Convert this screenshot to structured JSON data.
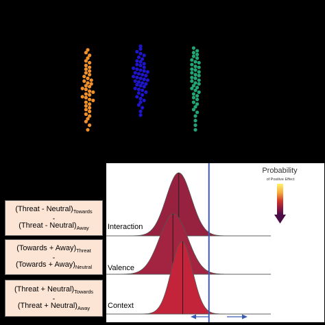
{
  "chart_data": [
    {
      "type": "scatter",
      "title": "",
      "colors": [
        "#f0902a",
        "#1e14c8",
        "#22a574"
      ],
      "series": [
        {
          "color": "#f0902a",
          "values": [
            0.92,
            0.89,
            0.86,
            0.83,
            0.8,
            0.78,
            0.75,
            0.73,
            0.71,
            0.69,
            0.67,
            0.65,
            0.63,
            0.61,
            0.59,
            0.58,
            0.56,
            0.55,
            0.53,
            0.52,
            0.5,
            0.49,
            0.47,
            0.46,
            0.44,
            0.43,
            0.41,
            0.4,
            0.38,
            0.37,
            0.35,
            0.33,
            0.31,
            0.29,
            0.27,
            0.25,
            0.22,
            0.2,
            0.17,
            0.14,
            0.1,
            0.05
          ]
        },
        {
          "color": "#1e14c8",
          "values": [
            0.96,
            0.93,
            0.9,
            0.88,
            0.86,
            0.84,
            0.82,
            0.8,
            0.79,
            0.77,
            0.76,
            0.75,
            0.73,
            0.72,
            0.71,
            0.7,
            0.69,
            0.68,
            0.67,
            0.66,
            0.65,
            0.64,
            0.63,
            0.62,
            0.61,
            0.6,
            0.59,
            0.58,
            0.57,
            0.56,
            0.55,
            0.54,
            0.53,
            0.52,
            0.5,
            0.49,
            0.48,
            0.46,
            0.45,
            0.43,
            0.41,
            0.39,
            0.37,
            0.35,
            0.32,
            0.29,
            0.25,
            0.21
          ]
        },
        {
          "color": "#22a574",
          "values": [
            0.94,
            0.91,
            0.89,
            0.87,
            0.85,
            0.83,
            0.81,
            0.79,
            0.78,
            0.76,
            0.74,
            0.73,
            0.71,
            0.7,
            0.68,
            0.67,
            0.65,
            0.64,
            0.62,
            0.61,
            0.59,
            0.58,
            0.56,
            0.55,
            0.53,
            0.51,
            0.5,
            0.48,
            0.46,
            0.44,
            0.42,
            0.4,
            0.38,
            0.35,
            0.33,
            0.3,
            0.27,
            0.24,
            0.2,
            0.15,
            0.1,
            0.05
          ]
        }
      ]
    },
    {
      "type": "area",
      "title": "",
      "legend": {
        "title": "Probability",
        "subtitle": "of Positive Effect",
        "gradient": [
          "#fff36b",
          "#f5a83c",
          "#d0392a",
          "#8a1840",
          "#4a0c46"
        ]
      },
      "reference_line": {
        "x": 0.42,
        "color": "#3a5ab3"
      },
      "series": [
        {
          "name": "Interaction",
          "mean": -0.35,
          "sd": 0.32,
          "median": -0.35,
          "color": "#962240"
        },
        {
          "name": "Valence",
          "mean": -0.48,
          "sd": 0.36,
          "median": -0.5,
          "color": "#a32440"
        },
        {
          "name": "Context",
          "mean": -0.27,
          "sd": 0.27,
          "median": -0.25,
          "color": "#c3243a"
        }
      ],
      "xlim": [
        -2.2,
        2.0
      ]
    }
  ],
  "formulas": [
    {
      "top": {
        "text": "(Threat - Neutral)",
        "sub": "Towards"
      },
      "minus": "-",
      "bottom": {
        "text": "(Threat - Neutral)",
        "sub": "Away"
      }
    },
    {
      "top": {
        "text": "(Towards + Away)",
        "sub": "Threat"
      },
      "minus": "-",
      "bottom": {
        "text": "(Towards + Away)",
        "sub": "Neutral"
      }
    },
    {
      "top": {
        "text": "(Threat + Neutral)",
        "sub": "Towards"
      },
      "minus": "-",
      "bottom": {
        "text": "(Threat + Neutral)",
        "sub": "Away"
      }
    }
  ]
}
